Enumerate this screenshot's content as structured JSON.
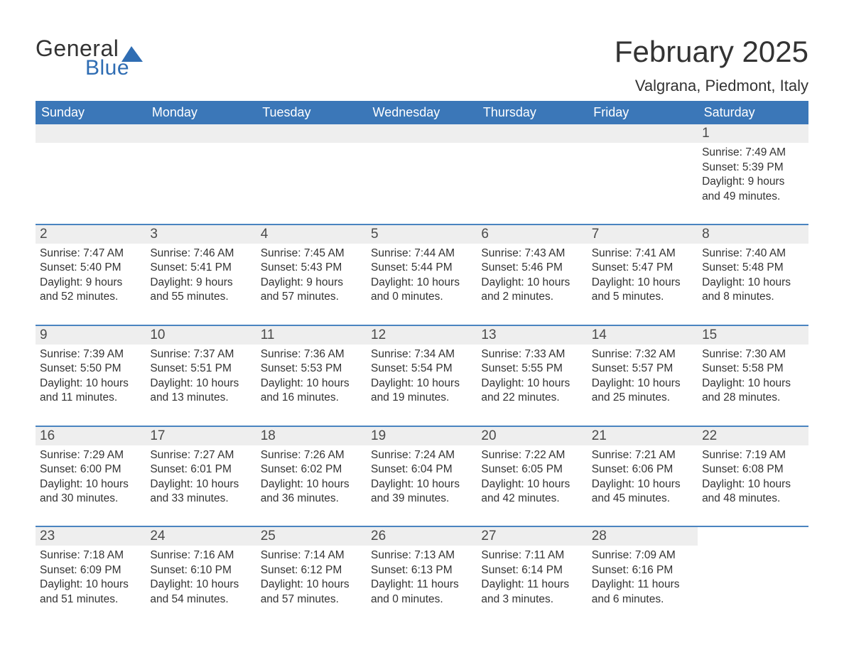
{
  "logo": {
    "word1": "General",
    "word2": "Blue"
  },
  "title": "February 2025",
  "location": "Valgrana, Piedmont, Italy",
  "colors": {
    "header_bg": "#3b77b8",
    "header_text": "#ffffff",
    "week_divider": "#4a84c0",
    "daynum_bg": "#eeeeee",
    "body_text": "#333333",
    "logo_blue": "#2f6db3",
    "page_bg": "#ffffff"
  },
  "weekdays": [
    "Sunday",
    "Monday",
    "Tuesday",
    "Wednesday",
    "Thursday",
    "Friday",
    "Saturday"
  ],
  "weeks": [
    [
      null,
      null,
      null,
      null,
      null,
      null,
      {
        "day": "1",
        "sunrise": "Sunrise: 7:49 AM",
        "sunset": "Sunset: 5:39 PM",
        "daylight1": "Daylight: 9 hours",
        "daylight2": "and 49 minutes."
      }
    ],
    [
      {
        "day": "2",
        "sunrise": "Sunrise: 7:47 AM",
        "sunset": "Sunset: 5:40 PM",
        "daylight1": "Daylight: 9 hours",
        "daylight2": "and 52 minutes."
      },
      {
        "day": "3",
        "sunrise": "Sunrise: 7:46 AM",
        "sunset": "Sunset: 5:41 PM",
        "daylight1": "Daylight: 9 hours",
        "daylight2": "and 55 minutes."
      },
      {
        "day": "4",
        "sunrise": "Sunrise: 7:45 AM",
        "sunset": "Sunset: 5:43 PM",
        "daylight1": "Daylight: 9 hours",
        "daylight2": "and 57 minutes."
      },
      {
        "day": "5",
        "sunrise": "Sunrise: 7:44 AM",
        "sunset": "Sunset: 5:44 PM",
        "daylight1": "Daylight: 10 hours",
        "daylight2": "and 0 minutes."
      },
      {
        "day": "6",
        "sunrise": "Sunrise: 7:43 AM",
        "sunset": "Sunset: 5:46 PM",
        "daylight1": "Daylight: 10 hours",
        "daylight2": "and 2 minutes."
      },
      {
        "day": "7",
        "sunrise": "Sunrise: 7:41 AM",
        "sunset": "Sunset: 5:47 PM",
        "daylight1": "Daylight: 10 hours",
        "daylight2": "and 5 minutes."
      },
      {
        "day": "8",
        "sunrise": "Sunrise: 7:40 AM",
        "sunset": "Sunset: 5:48 PM",
        "daylight1": "Daylight: 10 hours",
        "daylight2": "and 8 minutes."
      }
    ],
    [
      {
        "day": "9",
        "sunrise": "Sunrise: 7:39 AM",
        "sunset": "Sunset: 5:50 PM",
        "daylight1": "Daylight: 10 hours",
        "daylight2": "and 11 minutes."
      },
      {
        "day": "10",
        "sunrise": "Sunrise: 7:37 AM",
        "sunset": "Sunset: 5:51 PM",
        "daylight1": "Daylight: 10 hours",
        "daylight2": "and 13 minutes."
      },
      {
        "day": "11",
        "sunrise": "Sunrise: 7:36 AM",
        "sunset": "Sunset: 5:53 PM",
        "daylight1": "Daylight: 10 hours",
        "daylight2": "and 16 minutes."
      },
      {
        "day": "12",
        "sunrise": "Sunrise: 7:34 AM",
        "sunset": "Sunset: 5:54 PM",
        "daylight1": "Daylight: 10 hours",
        "daylight2": "and 19 minutes."
      },
      {
        "day": "13",
        "sunrise": "Sunrise: 7:33 AM",
        "sunset": "Sunset: 5:55 PM",
        "daylight1": "Daylight: 10 hours",
        "daylight2": "and 22 minutes."
      },
      {
        "day": "14",
        "sunrise": "Sunrise: 7:32 AM",
        "sunset": "Sunset: 5:57 PM",
        "daylight1": "Daylight: 10 hours",
        "daylight2": "and 25 minutes."
      },
      {
        "day": "15",
        "sunrise": "Sunrise: 7:30 AM",
        "sunset": "Sunset: 5:58 PM",
        "daylight1": "Daylight: 10 hours",
        "daylight2": "and 28 minutes."
      }
    ],
    [
      {
        "day": "16",
        "sunrise": "Sunrise: 7:29 AM",
        "sunset": "Sunset: 6:00 PM",
        "daylight1": "Daylight: 10 hours",
        "daylight2": "and 30 minutes."
      },
      {
        "day": "17",
        "sunrise": "Sunrise: 7:27 AM",
        "sunset": "Sunset: 6:01 PM",
        "daylight1": "Daylight: 10 hours",
        "daylight2": "and 33 minutes."
      },
      {
        "day": "18",
        "sunrise": "Sunrise: 7:26 AM",
        "sunset": "Sunset: 6:02 PM",
        "daylight1": "Daylight: 10 hours",
        "daylight2": "and 36 minutes."
      },
      {
        "day": "19",
        "sunrise": "Sunrise: 7:24 AM",
        "sunset": "Sunset: 6:04 PM",
        "daylight1": "Daylight: 10 hours",
        "daylight2": "and 39 minutes."
      },
      {
        "day": "20",
        "sunrise": "Sunrise: 7:22 AM",
        "sunset": "Sunset: 6:05 PM",
        "daylight1": "Daylight: 10 hours",
        "daylight2": "and 42 minutes."
      },
      {
        "day": "21",
        "sunrise": "Sunrise: 7:21 AM",
        "sunset": "Sunset: 6:06 PM",
        "daylight1": "Daylight: 10 hours",
        "daylight2": "and 45 minutes."
      },
      {
        "day": "22",
        "sunrise": "Sunrise: 7:19 AM",
        "sunset": "Sunset: 6:08 PM",
        "daylight1": "Daylight: 10 hours",
        "daylight2": "and 48 minutes."
      }
    ],
    [
      {
        "day": "23",
        "sunrise": "Sunrise: 7:18 AM",
        "sunset": "Sunset: 6:09 PM",
        "daylight1": "Daylight: 10 hours",
        "daylight2": "and 51 minutes."
      },
      {
        "day": "24",
        "sunrise": "Sunrise: 7:16 AM",
        "sunset": "Sunset: 6:10 PM",
        "daylight1": "Daylight: 10 hours",
        "daylight2": "and 54 minutes."
      },
      {
        "day": "25",
        "sunrise": "Sunrise: 7:14 AM",
        "sunset": "Sunset: 6:12 PM",
        "daylight1": "Daylight: 10 hours",
        "daylight2": "and 57 minutes."
      },
      {
        "day": "26",
        "sunrise": "Sunrise: 7:13 AM",
        "sunset": "Sunset: 6:13 PM",
        "daylight1": "Daylight: 11 hours",
        "daylight2": "and 0 minutes."
      },
      {
        "day": "27",
        "sunrise": "Sunrise: 7:11 AM",
        "sunset": "Sunset: 6:14 PM",
        "daylight1": "Daylight: 11 hours",
        "daylight2": "and 3 minutes."
      },
      {
        "day": "28",
        "sunrise": "Sunrise: 7:09 AM",
        "sunset": "Sunset: 6:16 PM",
        "daylight1": "Daylight: 11 hours",
        "daylight2": "and 6 minutes."
      },
      null
    ]
  ]
}
